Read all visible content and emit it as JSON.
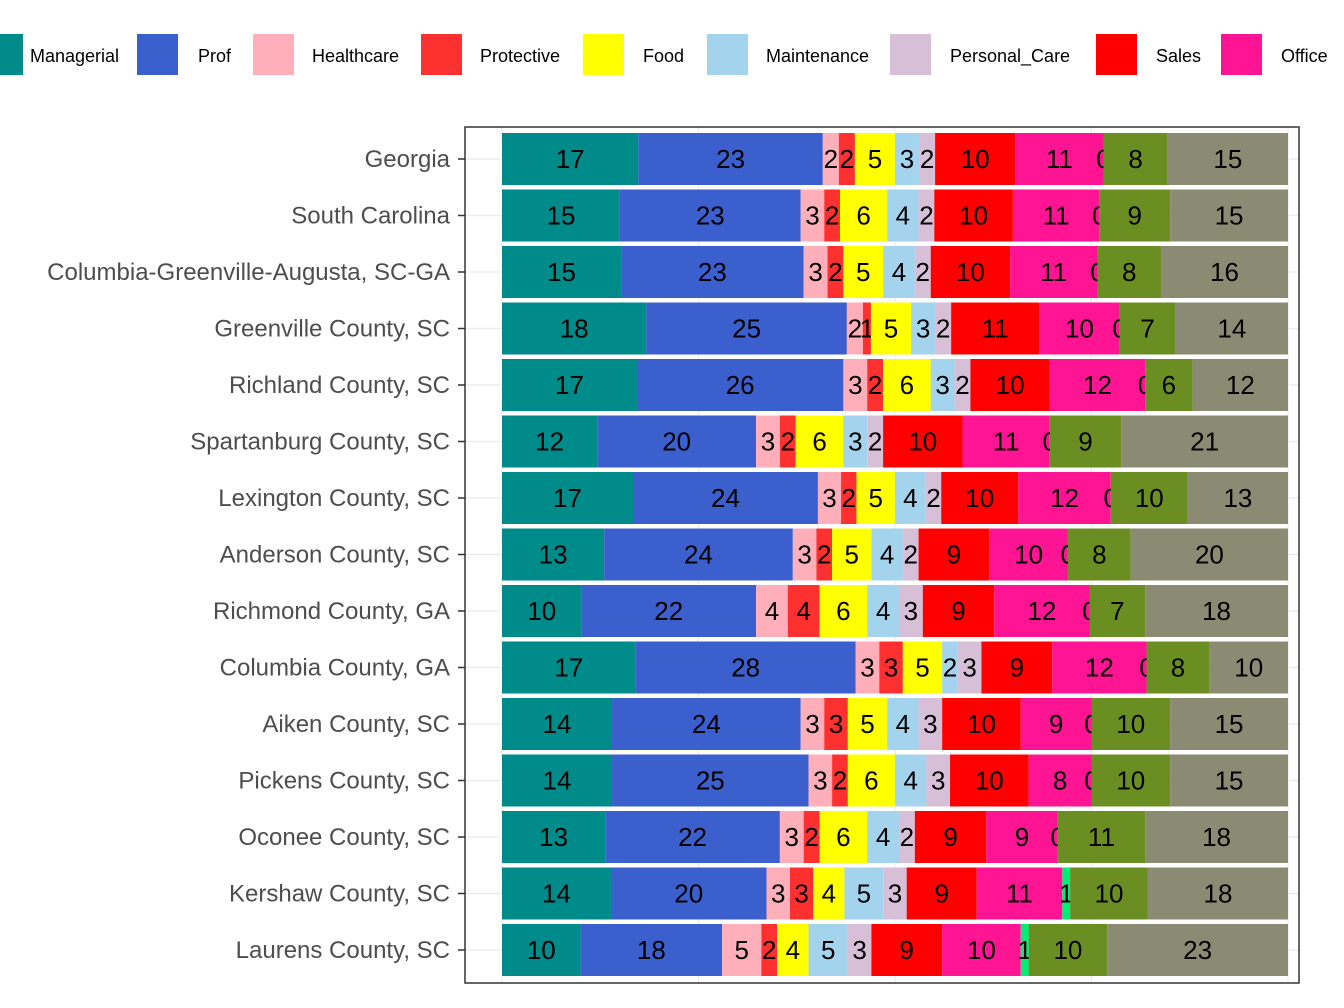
{
  "chart_data": {
    "type": "bar",
    "orientation": "horizontal",
    "stacked": true,
    "normalized": true,
    "legend_position": "top",
    "grid": true,
    "categories": [
      "Georgia",
      "South Carolina",
      "Columbia-Greenville-Augusta, SC-GA",
      "Greenville County, SC",
      "Richland County, SC",
      "Spartanburg County, SC",
      "Lexington County, SC",
      "Anderson County, SC",
      "Richmond County, GA",
      "Columbia County, GA",
      "Aiken County, SC",
      "Pickens County, SC",
      "Oconee County, SC",
      "Kershaw County, SC",
      "Laurens County, SC"
    ],
    "series": [
      {
        "name": "Managerial",
        "color": "#008b8b",
        "values": [
          17,
          15,
          15,
          18,
          17,
          12,
          17,
          13,
          10,
          17,
          14,
          14,
          13,
          14,
          10
        ]
      },
      {
        "name": "Prof",
        "color": "#3b5fcd",
        "values": [
          23,
          23,
          23,
          25,
          26,
          20,
          24,
          24,
          22,
          28,
          24,
          25,
          22,
          20,
          18
        ]
      },
      {
        "name": "Healthcare",
        "color": "#ffafba",
        "values": [
          2,
          3,
          3,
          2,
          3,
          3,
          3,
          3,
          4,
          3,
          3,
          3,
          3,
          3,
          5
        ]
      },
      {
        "name": "Protective",
        "color": "#ff3030",
        "values": [
          2,
          2,
          2,
          1,
          2,
          2,
          2,
          2,
          4,
          3,
          3,
          2,
          2,
          3,
          2
        ]
      },
      {
        "name": "Food",
        "color": "#ffff00",
        "values": [
          5,
          6,
          5,
          5,
          6,
          6,
          5,
          5,
          6,
          5,
          5,
          6,
          6,
          4,
          4
        ]
      },
      {
        "name": "Maintenance",
        "color": "#a4d3ee",
        "values": [
          3,
          4,
          4,
          3,
          3,
          3,
          4,
          4,
          4,
          2,
          4,
          4,
          4,
          5,
          5
        ]
      },
      {
        "name": "Personal_Care",
        "color": "#d8bfd8",
        "values": [
          2,
          2,
          2,
          2,
          2,
          2,
          2,
          2,
          3,
          3,
          3,
          3,
          2,
          3,
          3
        ]
      },
      {
        "name": "Sales",
        "color": "#ff0000",
        "values": [
          10,
          10,
          10,
          11,
          10,
          10,
          10,
          9,
          9,
          9,
          10,
          10,
          9,
          9,
          9
        ]
      },
      {
        "name": "Office",
        "color": "#ff1493",
        "values": [
          11,
          11,
          11,
          10,
          12,
          11,
          12,
          10,
          12,
          12,
          9,
          8,
          9,
          11,
          10
        ]
      },
      {
        "name": "",
        "color": "#00ee76",
        "values": [
          0,
          0,
          0,
          0,
          0,
          0,
          0,
          0,
          0,
          0,
          0,
          0,
          0,
          1,
          1
        ]
      },
      {
        "name": "",
        "color": "#6b8e23",
        "values": [
          8,
          9,
          8,
          7,
          6,
          9,
          10,
          8,
          7,
          8,
          10,
          10,
          11,
          10,
          10
        ]
      },
      {
        "name": "",
        "color": "#8b8b73",
        "values": [
          15,
          15,
          16,
          14,
          12,
          21,
          13,
          20,
          18,
          10,
          15,
          15,
          18,
          18,
          23
        ]
      }
    ]
  }
}
